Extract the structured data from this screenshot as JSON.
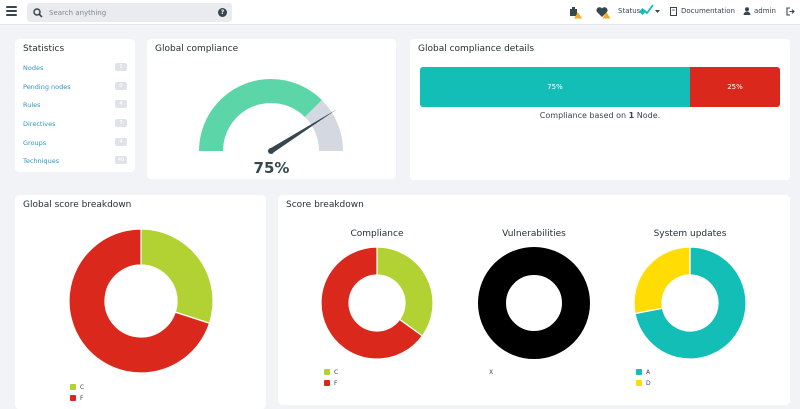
{
  "topbar": {
    "search_placeholder": "Search anything",
    "status_label": "Status",
    "documentation_label": "Documentation",
    "user_label": "admin"
  },
  "statistics": {
    "title": "Statistics",
    "items": [
      {
        "label": "Nodes",
        "count": "1"
      },
      {
        "label": "Pending nodes",
        "count": "0"
      },
      {
        "label": "Rules",
        "count": "4"
      },
      {
        "label": "Directives",
        "count": "3"
      },
      {
        "label": "Groups",
        "count": "4"
      },
      {
        "label": "Techniques",
        "count": "40"
      }
    ]
  },
  "global_compliance": {
    "title": "Global compliance",
    "value_text": "75%",
    "value": 75
  },
  "compliance_details": {
    "title": "Global compliance details",
    "segments": [
      {
        "label": "75%",
        "value": 75,
        "color": "#13beb7"
      },
      {
        "label": "25%",
        "value": 25,
        "color": "#da291c"
      }
    ],
    "caption_prefix": "Compliance based on",
    "caption_count": "1",
    "caption_suffix": "Node."
  },
  "global_score": {
    "title": "Global score breakdown",
    "legend": [
      {
        "label": "C",
        "color": "#b1d232"
      },
      {
        "label": "F",
        "color": "#da291c"
      }
    ]
  },
  "score_breakdown": {
    "title": "Score breakdown",
    "compliance": {
      "title": "Compliance",
      "legend": [
        {
          "label": "C",
          "color": "#b1d232"
        },
        {
          "label": "F",
          "color": "#da291c"
        }
      ]
    },
    "vulnerabilities": {
      "title": "Vulnerabilities",
      "legend": [
        {
          "label": "X",
          "color": "#000000"
        }
      ]
    },
    "system_updates": {
      "title": "System updates",
      "legend": [
        {
          "label": "A",
          "color": "#13beb7"
        },
        {
          "label": "D",
          "color": "#fedc04"
        }
      ]
    }
  },
  "chart_data": [
    {
      "type": "pie",
      "title": "Global score breakdown",
      "categories": [
        "C",
        "F"
      ],
      "values": [
        30,
        70
      ],
      "colors": [
        "#b1d232",
        "#da291c"
      ]
    },
    {
      "type": "pie",
      "title": "Compliance",
      "categories": [
        "C",
        "F"
      ],
      "values": [
        35,
        65
      ],
      "colors": [
        "#b1d232",
        "#da291c"
      ]
    },
    {
      "type": "pie",
      "title": "Vulnerabilities",
      "categories": [
        "X"
      ],
      "values": [
        100
      ],
      "colors": [
        "#000000"
      ]
    },
    {
      "type": "pie",
      "title": "System updates",
      "categories": [
        "A",
        "D"
      ],
      "values": [
        72,
        28
      ],
      "colors": [
        "#13beb7",
        "#fedc04"
      ]
    }
  ]
}
